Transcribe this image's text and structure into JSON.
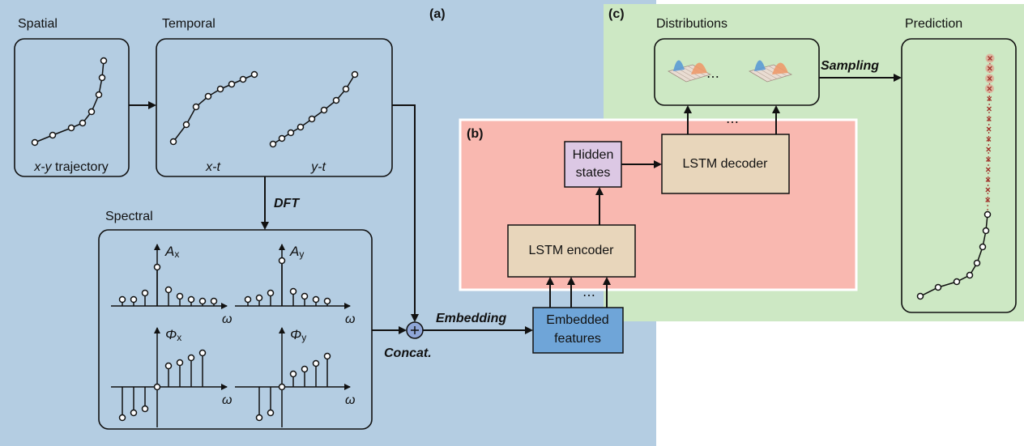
{
  "panels": {
    "a": "(a)",
    "b": "(b)",
    "c": "(c)"
  },
  "section_labels": {
    "spatial": "Spatial",
    "temporal": "Temporal",
    "spectral": "Spectral",
    "distributions": "Distributions",
    "prediction": "Prediction"
  },
  "plot_labels": {
    "trajectory": [
      "x-y",
      " trajectory"
    ],
    "xt": "x-t",
    "yt": "y-t"
  },
  "spectral_plots": [
    {
      "symbol": "A",
      "sub": "x",
      "axis": "ω"
    },
    {
      "symbol": "A",
      "sub": "y",
      "axis": "ω"
    },
    {
      "symbol": "Φ",
      "sub": "x",
      "axis": "ω"
    },
    {
      "symbol": "Φ",
      "sub": "y",
      "axis": "ω"
    }
  ],
  "edges": {
    "dft": "DFT",
    "concat": "Concat.",
    "embedding": "Embedding",
    "sampling": "Sampling"
  },
  "nodes": {
    "embedded": [
      "Embedded",
      "features"
    ],
    "encoder": "LSTM encoder",
    "hidden": [
      "Hidden",
      "states"
    ],
    "decoder": "LSTM decoder"
  },
  "ellipsis": "⋯"
}
